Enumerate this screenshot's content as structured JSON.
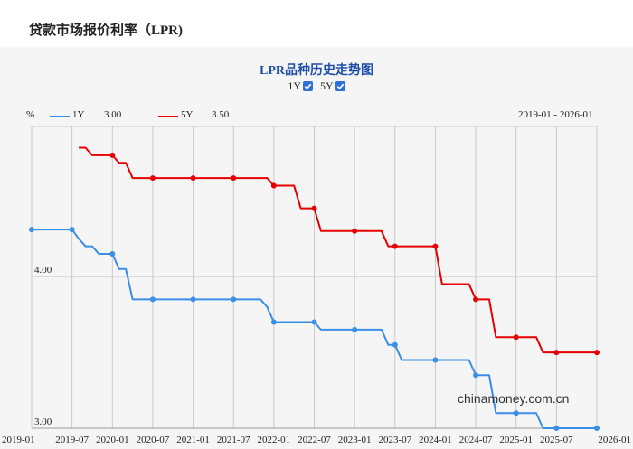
{
  "page": {
    "title": "贷款市场报价利率（LPR)"
  },
  "chart_data": {
    "type": "line",
    "title": "LPR品种历史走势图",
    "toggles": [
      {
        "label": "1Y",
        "checked": true
      },
      {
        "label": "5Y",
        "checked": true
      }
    ],
    "unit": "%",
    "legend": [
      {
        "name": "1Y",
        "value": "3.00",
        "color": "#3a8ee6"
      },
      {
        "name": "5Y",
        "value": "3.50",
        "color": "#e60000"
      }
    ],
    "range_label": "2019-01 - 2026-01",
    "xlim": [
      "2019-01",
      "2026-01"
    ],
    "ylim": [
      3.0,
      4.99
    ],
    "y_ticks": [
      {
        "value": 4.0,
        "label": "4.00"
      },
      {
        "value": 3.0,
        "label": "3.00"
      }
    ],
    "x_ticks": [
      "2019-01",
      "2019-07",
      "2020-01",
      "2020-07",
      "2021-01",
      "2021-07",
      "2022-01",
      "2022-07",
      "2023-01",
      "2023-07",
      "2024-01",
      "2024-07",
      "2025-01",
      "2025-07",
      "2026-01"
    ],
    "series": [
      {
        "name": "1Y",
        "color": "#3a8ee6",
        "points": [
          [
            "2019-01",
            4.31
          ],
          [
            "2019-07",
            4.31
          ],
          [
            "2019-08",
            4.25
          ],
          [
            "2019-09",
            4.2
          ],
          [
            "2019-10",
            4.2
          ],
          [
            "2019-11",
            4.15
          ],
          [
            "2020-01",
            4.15
          ],
          [
            "2020-02",
            4.05
          ],
          [
            "2020-03",
            4.05
          ],
          [
            "2020-04",
            3.85
          ],
          [
            "2020-07",
            3.85
          ],
          [
            "2021-01",
            3.85
          ],
          [
            "2021-07",
            3.85
          ],
          [
            "2021-11",
            3.85
          ],
          [
            "2021-12",
            3.8
          ],
          [
            "2022-01",
            3.7
          ],
          [
            "2022-07",
            3.7
          ],
          [
            "2022-08",
            3.65
          ],
          [
            "2023-01",
            3.65
          ],
          [
            "2023-05",
            3.65
          ],
          [
            "2023-06",
            3.55
          ],
          [
            "2023-07",
            3.55
          ],
          [
            "2023-08",
            3.45
          ],
          [
            "2024-01",
            3.45
          ],
          [
            "2024-06",
            3.45
          ],
          [
            "2024-07",
            3.35
          ],
          [
            "2024-09",
            3.35
          ],
          [
            "2024-10",
            3.1
          ],
          [
            "2025-01",
            3.1
          ],
          [
            "2025-04",
            3.1
          ],
          [
            "2025-05",
            3.0
          ],
          [
            "2025-07",
            3.0
          ],
          [
            "2026-01",
            3.0
          ]
        ],
        "markers": [
          "2019-01",
          "2019-07",
          "2020-01",
          "2020-07",
          "2021-01",
          "2021-07",
          "2022-01",
          "2022-07",
          "2023-01",
          "2023-07",
          "2024-01",
          "2024-07",
          "2025-01",
          "2025-07",
          "2026-01"
        ]
      },
      {
        "name": "5Y",
        "color": "#e60000",
        "points": [
          [
            "2019-08",
            4.85
          ],
          [
            "2019-09",
            4.85
          ],
          [
            "2019-10",
            4.8
          ],
          [
            "2019-12",
            4.8
          ],
          [
            "2020-01",
            4.8
          ],
          [
            "2020-02",
            4.75
          ],
          [
            "2020-03",
            4.75
          ],
          [
            "2020-04",
            4.65
          ],
          [
            "2020-07",
            4.65
          ],
          [
            "2021-01",
            4.65
          ],
          [
            "2021-07",
            4.65
          ],
          [
            "2021-12",
            4.65
          ],
          [
            "2022-01",
            4.6
          ],
          [
            "2022-04",
            4.6
          ],
          [
            "2022-05",
            4.45
          ],
          [
            "2022-07",
            4.45
          ],
          [
            "2022-08",
            4.3
          ],
          [
            "2023-01",
            4.3
          ],
          [
            "2023-05",
            4.3
          ],
          [
            "2023-06",
            4.2
          ],
          [
            "2023-07",
            4.2
          ],
          [
            "2024-01",
            4.2
          ],
          [
            "2024-02",
            3.95
          ],
          [
            "2024-06",
            3.95
          ],
          [
            "2024-07",
            3.85
          ],
          [
            "2024-09",
            3.85
          ],
          [
            "2024-10",
            3.6
          ],
          [
            "2025-01",
            3.6
          ],
          [
            "2025-04",
            3.6
          ],
          [
            "2025-05",
            3.5
          ],
          [
            "2025-07",
            3.5
          ],
          [
            "2026-01",
            3.5
          ]
        ],
        "markers": [
          "2020-01",
          "2020-07",
          "2021-01",
          "2021-07",
          "2022-01",
          "2022-07",
          "2023-01",
          "2023-07",
          "2024-01",
          "2024-07",
          "2025-01",
          "2025-07",
          "2026-01"
        ]
      }
    ],
    "watermark": "chinamoney.com.cn"
  }
}
